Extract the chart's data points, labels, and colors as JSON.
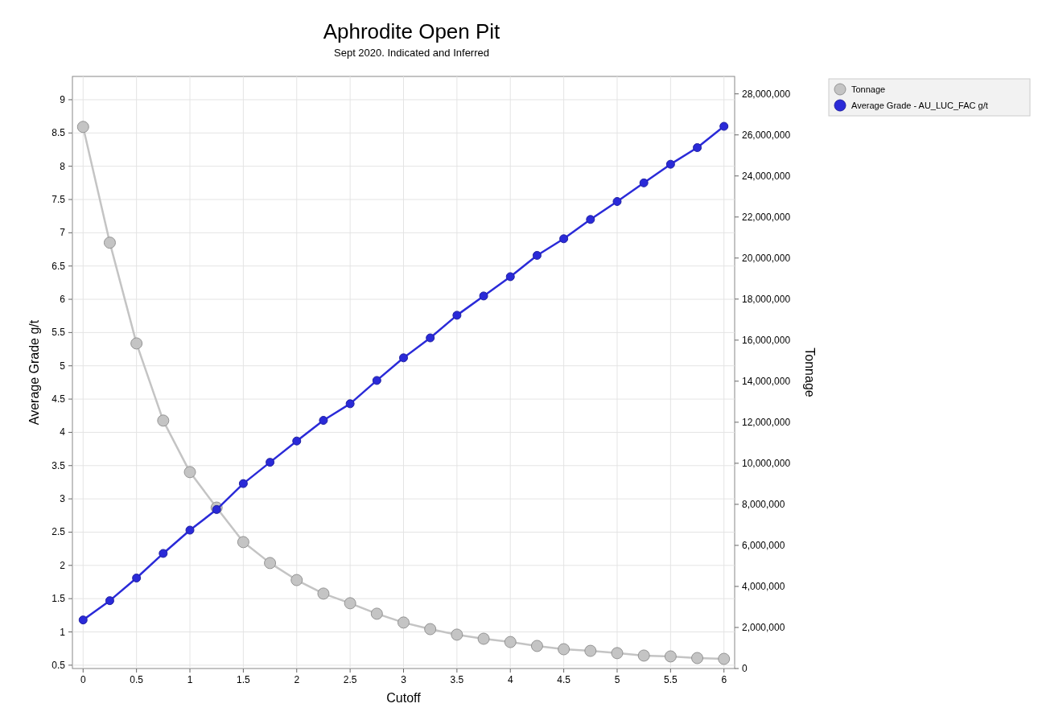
{
  "chart_data": {
    "type": "line",
    "title": "Aphrodite Open Pit",
    "subtitle": "Sept 2020. Indicated and Inferred",
    "xlabel": "Cutoff",
    "ylabel": "Average Grade g/t",
    "y2label": "Tonnage",
    "x": [
      0,
      0.25,
      0.5,
      0.75,
      1,
      1.25,
      1.5,
      1.75,
      2,
      2.25,
      2.5,
      2.75,
      3,
      3.25,
      3.5,
      3.75,
      4,
      4.25,
      4.5,
      4.75,
      5,
      5.25,
      5.5,
      5.75,
      6
    ],
    "series": [
      {
        "name": "Tonnage",
        "color": "#c4c4c4",
        "axis": "y2",
        "values": [
          26390000,
          20750000,
          15840000,
          12080000,
          9570000,
          7840000,
          6160000,
          5140000,
          4310000,
          3650000,
          3180000,
          2670000,
          2240000,
          1920000,
          1650000,
          1450000,
          1290000,
          1100000,
          940000,
          860000,
          750000,
          630000,
          590000,
          510000,
          470000
        ]
      },
      {
        "name": "Average Grade - AU_LUC_FAC g/t",
        "color": "#2a2ad8",
        "values": [
          1.18,
          1.47,
          1.81,
          2.18,
          2.53,
          2.84,
          3.23,
          3.55,
          3.87,
          4.18,
          4.43,
          4.78,
          5.12,
          5.42,
          5.76,
          6.05,
          6.34,
          6.66,
          6.91,
          7.2,
          7.47,
          7.75,
          8.03,
          8.28,
          8.6
        ]
      }
    ],
    "xlim": [
      -0.1,
      6.1
    ],
    "xticks": [
      0,
      0.5,
      1,
      1.5,
      2,
      2.5,
      3,
      3.5,
      4,
      4.5,
      5,
      5.5,
      6
    ],
    "ylim": [
      0.45,
      9.35
    ],
    "yticks": [
      0.5,
      1,
      1.5,
      2,
      2.5,
      3,
      3.5,
      4,
      4.5,
      5,
      5.5,
      6,
      6.5,
      7,
      7.5,
      8,
      8.5,
      9
    ],
    "y2lim": [
      0,
      28850000
    ],
    "y2ticks": [
      0,
      {
        "value": 2000000,
        "label": "2,000,000"
      },
      {
        "value": 4000000,
        "label": "4,000,000"
      },
      {
        "value": 6000000,
        "label": "6,000,000"
      },
      {
        "value": 8000000,
        "label": "8,000,000"
      },
      {
        "value": 10000000,
        "label": "10,000,000"
      },
      {
        "value": 12000000,
        "label": "12,000,000"
      },
      {
        "value": 14000000,
        "label": "14,000,000"
      },
      {
        "value": 16000000,
        "label": "16,000,000"
      },
      {
        "value": 18000000,
        "label": "18,000,000"
      },
      {
        "value": 20000000,
        "label": "20,000,000"
      },
      {
        "value": 22000000,
        "label": "22,000,000"
      },
      {
        "value": 24000000,
        "label": "24,000,000"
      },
      {
        "value": 26000000,
        "label": "26,000,000"
      },
      {
        "value": 28000000,
        "label": "28,000,000"
      }
    ],
    "grid": true,
    "legend": "top right",
    "marker": "circle",
    "line_style": "solid"
  }
}
